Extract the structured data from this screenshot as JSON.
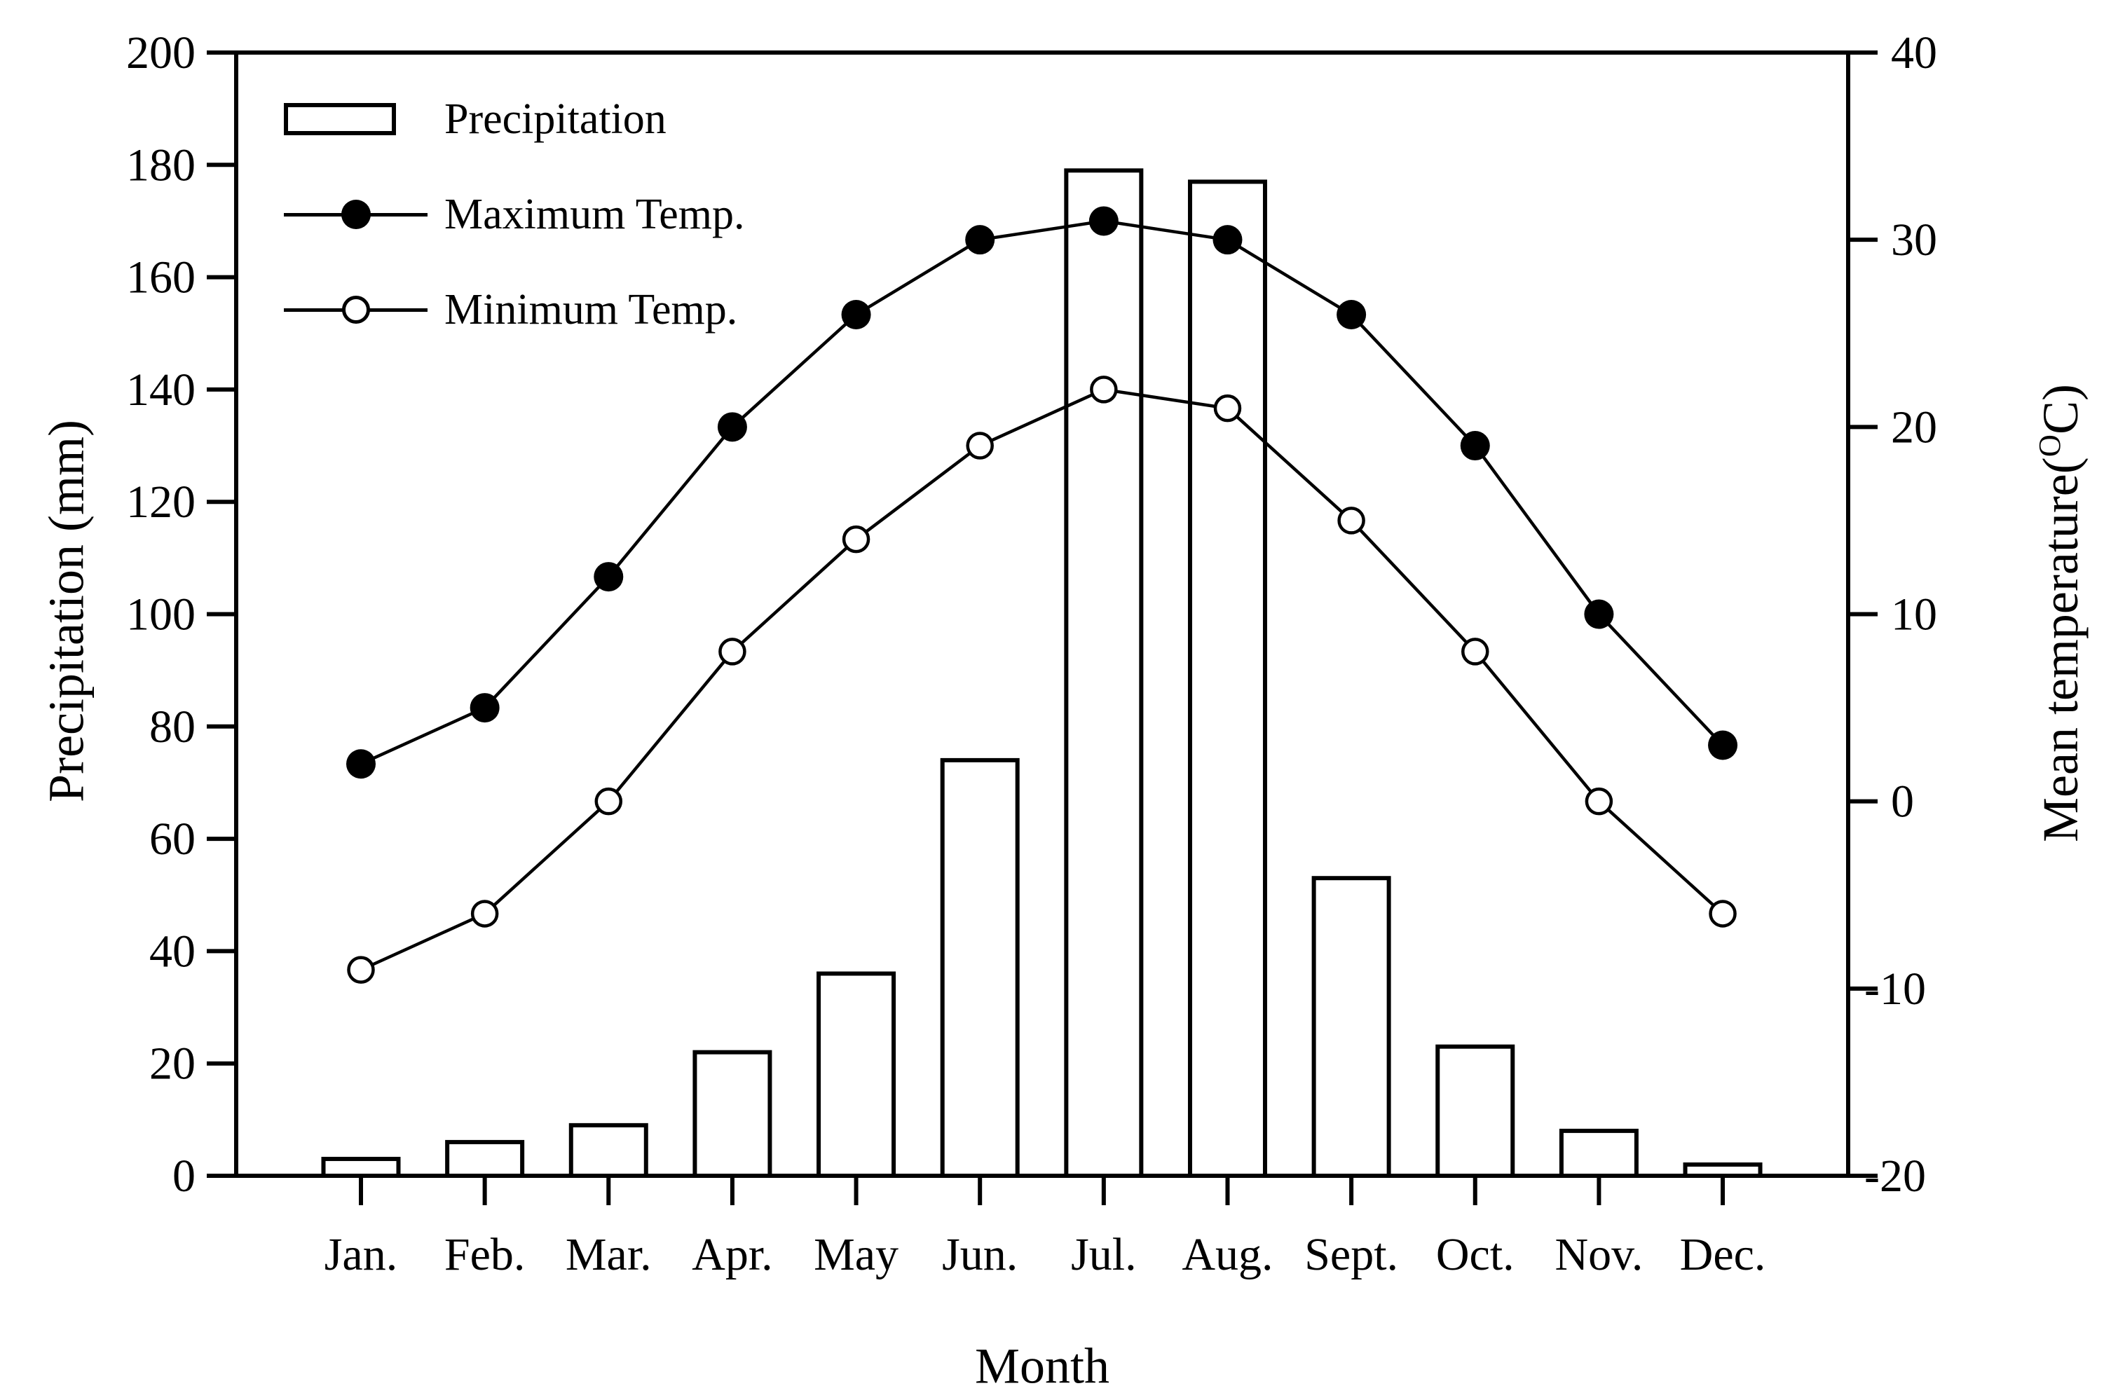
{
  "chart_data": {
    "type": "bar+line",
    "title": "",
    "categories": [
      "Jan.",
      "Feb.",
      "Mar.",
      "Apr.",
      "May",
      "Jun.",
      "Jul.",
      "Aug.",
      "Sept.",
      "Oct.",
      "Nov.",
      "Dec."
    ],
    "bar_series": {
      "name": "Precipitation",
      "unit": "mm",
      "values": [
        3,
        6,
        9,
        22,
        36,
        74,
        179,
        177,
        53,
        23,
        8,
        2
      ]
    },
    "line_series": [
      {
        "name": "Maximum Temp.",
        "marker": "filled-circle",
        "unit": "°C",
        "values": [
          2,
          5,
          12,
          20,
          26,
          30,
          31,
          30,
          26,
          19,
          10,
          3
        ]
      },
      {
        "name": "Minimum Temp.",
        "marker": "open-circle",
        "unit": "°C",
        "values": [
          -9,
          -6,
          0,
          8,
          14,
          19,
          22,
          21,
          15,
          8,
          0,
          -6
        ]
      }
    ],
    "xlabel": "Month",
    "ylabel_left": "Precipitation (mm)",
    "ylabel_right_prefix": "Mean temperature(",
    "ylabel_right_sup": "O",
    "ylabel_right_suffix": "C)",
    "y_left": {
      "min": 0,
      "max": 200,
      "step": 20
    },
    "y_right": {
      "min": -20,
      "max": 40,
      "step": 10
    },
    "y_left_ticks": [
      "0",
      "20",
      "40",
      "60",
      "80",
      "100",
      "120",
      "140",
      "160",
      "180",
      "200"
    ],
    "y_right_ticks": [
      "-20",
      "-10",
      "0",
      "10",
      "20",
      "30",
      "40"
    ],
    "legend_position": "top-left-inside",
    "grid": false,
    "colors": {
      "stroke": "#000000",
      "bar_fill": "#ffffff",
      "background": "#ffffff"
    }
  }
}
